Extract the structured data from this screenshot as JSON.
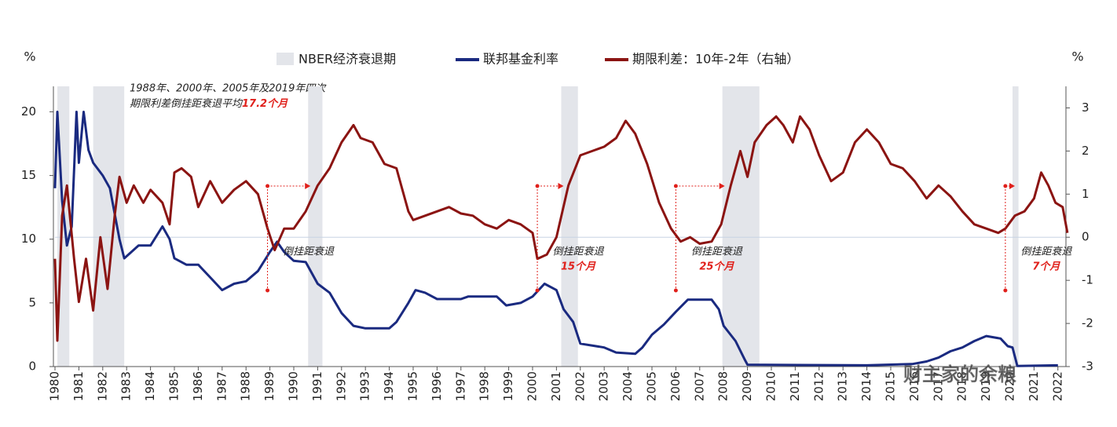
{
  "chart_data": {
    "type": "line",
    "y_unit": "%",
    "y2_unit": "%",
    "recession_label": "NBER经济衰退期",
    "recession_color": "#e3e5ea",
    "recessions": [
      [
        1980.1,
        1980.6
      ],
      [
        1981.6,
        1982.9
      ],
      [
        1990.6,
        1991.2
      ],
      [
        2001.2,
        2001.9
      ],
      [
        2007.95,
        2009.5
      ],
      [
        2020.1,
        2020.35
      ]
    ],
    "inversions": [
      1988.9,
      2000.2,
      2006.0,
      2019.8
    ],
    "xlim": [
      1980,
      2022.6
    ],
    "xticks": [
      1980,
      1981,
      1982,
      1983,
      1984,
      1985,
      1986,
      1987,
      1988,
      1989,
      1990,
      1991,
      1992,
      1993,
      1994,
      1995,
      1996,
      1997,
      1998,
      1999,
      2000,
      2001,
      2002,
      2003,
      2004,
      2005,
      2006,
      2007,
      2008,
      2009,
      2010,
      2011,
      2012,
      2013,
      2014,
      2015,
      2016,
      2017,
      2018,
      2019,
      2020,
      2021,
      2022
    ],
    "ylim": [
      0,
      22
    ],
    "yticks": [
      0,
      5,
      10,
      15,
      20
    ],
    "y2lim": [
      -3,
      3.5
    ],
    "y2ticks": [
      -3,
      -2,
      -1,
      0,
      1,
      2,
      3
    ],
    "series": [
      {
        "name": "联邦基金利率",
        "color": "#1a2a80",
        "axis": "y",
        "x": [
          1980.0,
          1980.1,
          1980.3,
          1980.5,
          1980.7,
          1980.9,
          1981.0,
          1981.2,
          1981.4,
          1981.6,
          1982.0,
          1982.3,
          1982.5,
          1982.7,
          1982.9,
          1983.5,
          1984.0,
          1984.5,
          1984.8,
          1985.0,
          1985.5,
          1986.0,
          1986.5,
          1987.0,
          1987.5,
          1988.0,
          1988.5,
          1989.0,
          1989.3,
          1989.6,
          1990.0,
          1990.5,
          1991.0,
          1991.5,
          1992.0,
          1992.5,
          1993.0,
          1994.0,
          1994.3,
          1994.8,
          1995.1,
          1995.5,
          1996.0,
          1997.0,
          1997.3,
          1998.5,
          1998.9,
          1999.5,
          2000.0,
          2000.5,
          2001.0,
          2001.3,
          2001.7,
          2002.0,
          2003.0,
          2003.5,
          2004.3,
          2004.6,
          2005.0,
          2005.5,
          2006.0,
          2006.5,
          2007.5,
          2007.8,
          2008.0,
          2008.5,
          2008.9,
          2009.0,
          2014.0,
          2015.9,
          2016.5,
          2017.0,
          2017.5,
          2018.0,
          2018.5,
          2019.0,
          2019.6,
          2019.9,
          2020.1,
          2020.3,
          2022.0
        ],
        "values": [
          14,
          20,
          13,
          9.5,
          11,
          20,
          16,
          20,
          17,
          16,
          15,
          14,
          12,
          10,
          8.5,
          9.5,
          9.5,
          11,
          10,
          8.5,
          8,
          8,
          7,
          6,
          6.5,
          6.7,
          7.5,
          9,
          9.8,
          9,
          8.3,
          8.2,
          6.5,
          5.8,
          4.2,
          3.2,
          3,
          3,
          3.5,
          5,
          6,
          5.8,
          5.3,
          5.3,
          5.5,
          5.5,
          4.8,
          5,
          5.5,
          6.5,
          6,
          4.5,
          3.5,
          1.8,
          1.5,
          1.1,
          1,
          1.5,
          2.5,
          3.3,
          4.3,
          5.25,
          5.25,
          4.5,
          3.2,
          2,
          0.5,
          0.15,
          0.1,
          0.2,
          0.4,
          0.7,
          1.2,
          1.5,
          2,
          2.4,
          2.2,
          1.6,
          1.5,
          0.05,
          0.1
        ]
      },
      {
        "name": "期限利差：10年-2年（右轴）",
        "color": "#8b1412",
        "axis": "y2",
        "x": [
          1980.0,
          1980.1,
          1980.3,
          1980.5,
          1980.8,
          1981.0,
          1981.3,
          1981.6,
          1981.9,
          1982.2,
          1982.5,
          1982.7,
          1983.0,
          1983.3,
          1983.7,
          1984.0,
          1984.5,
          1984.8,
          1985.0,
          1985.3,
          1985.7,
          1986.0,
          1986.5,
          1987.0,
          1987.5,
          1988.0,
          1988.5,
          1988.9,
          1989.2,
          1989.6,
          1990.0,
          1990.5,
          1991.0,
          1991.5,
          1992.0,
          1992.5,
          1992.8,
          1993.3,
          1993.8,
          1994.3,
          1994.8,
          1995.0,
          1995.5,
          1996.0,
          1996.5,
          1997.0,
          1997.5,
          1998.0,
          1998.5,
          1999.0,
          1999.5,
          2000.0,
          2000.2,
          2000.6,
          2001.0,
          2001.5,
          2002.0,
          2002.5,
          2003.0,
          2003.5,
          2003.9,
          2004.3,
          2004.8,
          2005.3,
          2005.8,
          2006.2,
          2006.6,
          2007.0,
          2007.5,
          2007.9,
          2008.3,
          2008.7,
          2009.0,
          2009.3,
          2009.8,
          2010.2,
          2010.5,
          2010.9,
          2011.2,
          2011.6,
          2012.0,
          2012.5,
          2013.0,
          2013.5,
          2014.0,
          2014.5,
          2015.0,
          2015.5,
          2016.0,
          2016.5,
          2017.0,
          2017.5,
          2018.0,
          2018.5,
          2019.0,
          2019.5,
          2019.8,
          2020.2,
          2020.6,
          2021.0,
          2021.3,
          2021.6,
          2021.9,
          2022.2,
          2022.4
        ],
        "values": [
          -0.5,
          -2.4,
          0.5,
          1.2,
          -0.5,
          -1.5,
          -0.5,
          -1.7,
          0,
          -1.2,
          0.5,
          1.4,
          0.8,
          1.2,
          0.8,
          1.1,
          0.8,
          0.3,
          1.5,
          1.6,
          1.4,
          0.7,
          1.3,
          0.8,
          1.1,
          1.3,
          1.0,
          0.2,
          -0.3,
          0.2,
          0.2,
          0.6,
          1.2,
          1.6,
          2.2,
          2.6,
          2.3,
          2.2,
          1.7,
          1.6,
          0.6,
          0.4,
          0.5,
          0.6,
          0.7,
          0.55,
          0.5,
          0.3,
          0.2,
          0.4,
          0.3,
          0.1,
          -0.5,
          -0.4,
          0,
          1.2,
          1.9,
          2.0,
          2.1,
          2.3,
          2.7,
          2.4,
          1.7,
          0.8,
          0.2,
          -0.1,
          0,
          -0.15,
          -0.1,
          0.3,
          1.2,
          2.0,
          1.4,
          2.2,
          2.6,
          2.8,
          2.6,
          2.2,
          2.8,
          2.5,
          1.9,
          1.3,
          1.5,
          2.2,
          2.5,
          2.2,
          1.7,
          1.6,
          1.3,
          0.9,
          1.2,
          0.95,
          0.6,
          0.3,
          0.2,
          0.1,
          0.2,
          0.5,
          0.6,
          0.9,
          1.5,
          1.2,
          0.8,
          0.7,
          0.1
        ]
      }
    ],
    "note": {
      "lines": [
        "1988年、2000年、2005年及2019年四次",
        "期限利差倒挂距衰退平均"
      ],
      "highlight": "17.2个月"
    },
    "annotations": [
      {
        "text": "倒挂距衰退"
      },
      {
        "text": "倒挂距衰退",
        "months": "15个月"
      },
      {
        "text": "倒挂距衰退",
        "months": "25个月"
      },
      {
        "text": "倒挂距衰退",
        "months": "7个月"
      }
    ],
    "watermark": "财主家的余粮"
  }
}
